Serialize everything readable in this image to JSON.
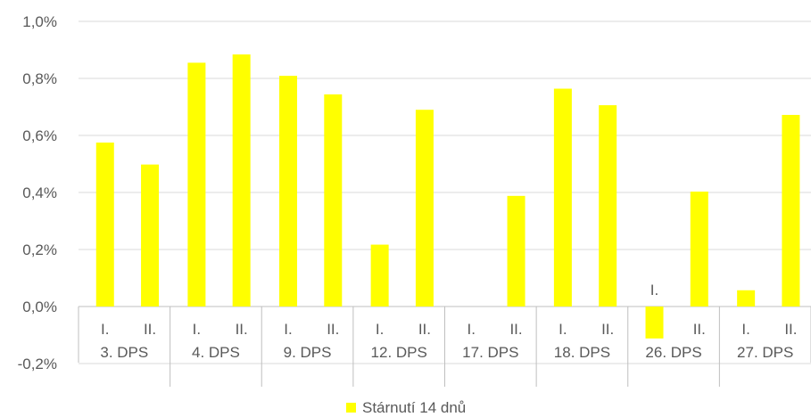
{
  "chart_data": {
    "type": "bar",
    "title": "",
    "xlabel": "",
    "ylabel": "",
    "ylim": [
      -0.2,
      1.0
    ],
    "y_ticks": [
      "-0,2%",
      "0,0%",
      "0,2%",
      "0,4%",
      "0,6%",
      "0,8%",
      "1,0%"
    ],
    "grid": true,
    "legend_position": "bottom",
    "groups": [
      "3. DPS",
      "4. DPS",
      "9. DPS",
      "12. DPS",
      "17. DPS",
      "18. DPS",
      "26. DPS",
      "27. DPS"
    ],
    "subcategories": [
      "I.",
      "II."
    ],
    "series": [
      {
        "name": "Stárnutí 14 dnů",
        "color": "#ffff00",
        "values": [
          [
            0.575,
            0.498
          ],
          [
            0.855,
            0.884
          ],
          [
            0.809,
            0.744
          ],
          [
            0.217,
            0.69
          ],
          [
            0.0,
            0.388
          ],
          [
            0.764,
            0.706
          ],
          [
            -0.112,
            0.403
          ],
          [
            0.057,
            0.672
          ]
        ]
      }
    ]
  },
  "colors": {
    "bar": "#ffff00",
    "grid": "#d9d9d9",
    "axis": "#bfbfbf",
    "text": "#595959"
  }
}
